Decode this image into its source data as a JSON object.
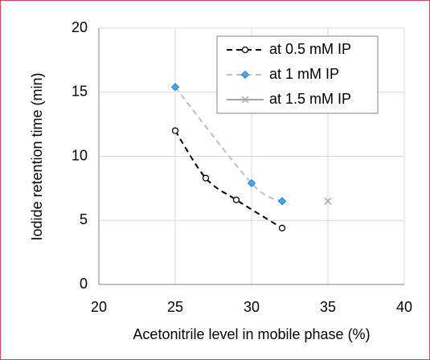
{
  "chart_data": {
    "type": "line",
    "x_label": "Acetonitrile level in mobile phase (%)",
    "y_label": "Iodide retention time (min)",
    "xlim": [
      20,
      40
    ],
    "xticks": [
      20,
      25,
      30,
      35,
      40
    ],
    "ylim": [
      0,
      20
    ],
    "yticks": [
      0,
      5,
      10,
      15,
      20
    ],
    "grid": true,
    "legend": "upper right",
    "series": [
      {
        "name": "at 0.5 mM IP",
        "color": "#000000",
        "marker": "circle",
        "line": "dashed",
        "x": [
          25,
          27,
          29,
          32
        ],
        "values": [
          12,
          8.3,
          6.6,
          4.4
        ]
      },
      {
        "name": "at 1 mM IP",
        "color": "#bfbfbf",
        "marker": "diamond",
        "marker_color": "#3fa9f5",
        "line": "dashed",
        "x": [
          25,
          30,
          32
        ],
        "values": [
          15.4,
          7.9,
          6.5
        ]
      },
      {
        "name": "at 1.5 mM IP",
        "color": "#a6a6a6",
        "marker": "x",
        "line": "solid",
        "x": [
          35
        ],
        "values": [
          6.5
        ]
      }
    ]
  }
}
